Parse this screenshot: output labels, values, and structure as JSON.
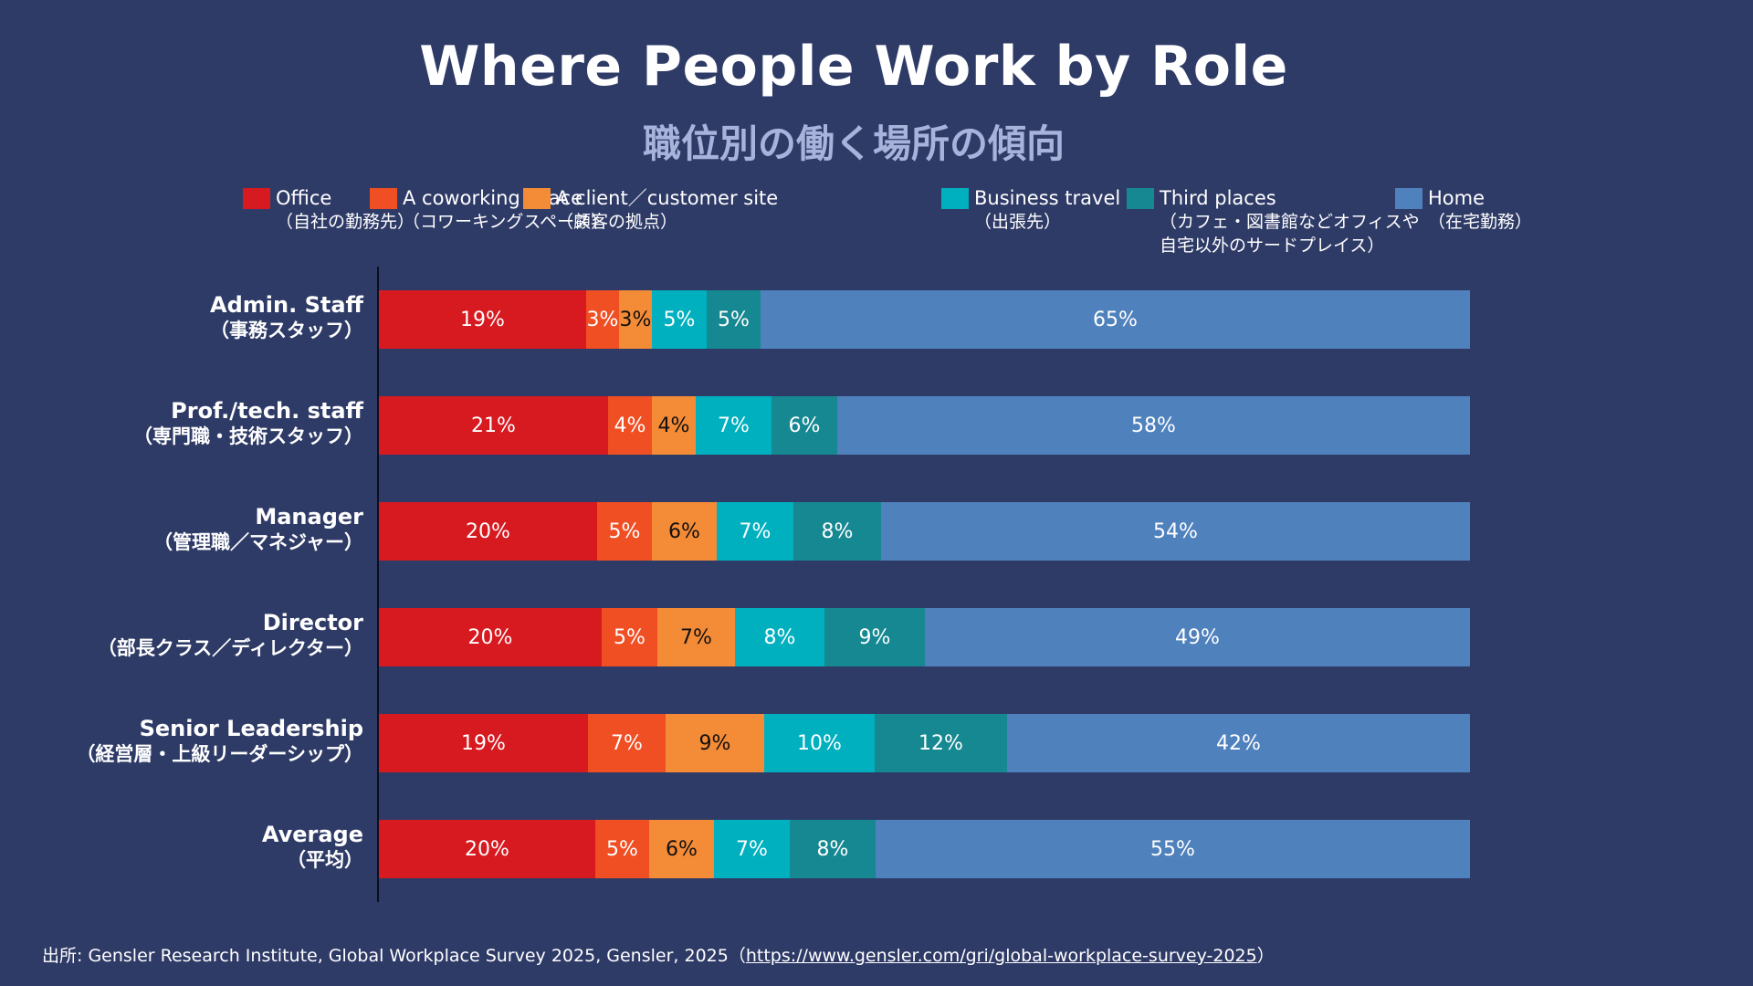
{
  "header": {
    "title": "Where People Work by Role",
    "subtitle": "職位別の働く場所の傾向"
  },
  "chart_data": {
    "type": "bar",
    "orientation": "horizontal",
    "stacked": true,
    "percent_stacked": true,
    "title": "Where People Work by Role",
    "subtitle": "職位別の働く場所の傾向",
    "xlabel": "",
    "ylabel": "",
    "xlim": [
      0,
      100
    ],
    "grid": false,
    "legend_position": "top",
    "categories": [
      {
        "en": "Admin. Staff",
        "ja": "（事務スタッフ）"
      },
      {
        "en": "Prof./tech. staff",
        "ja": "（専門職・技術スタッフ）"
      },
      {
        "en": "Manager",
        "ja": "（管理職／マネジャー）"
      },
      {
        "en": "Director",
        "ja": "（部長クラス／ディレクター）"
      },
      {
        "en": "Senior Leadership",
        "ja": "（経営層・上級リーダーシップ）"
      },
      {
        "en": "Average",
        "ja": "（平均）"
      }
    ],
    "series": [
      {
        "name": "Office",
        "name_ja": "（自社の勤務先）",
        "color": "#d71920",
        "label_color": "#ffffff",
        "values": [
          19,
          21,
          20,
          20,
          19,
          20
        ]
      },
      {
        "name": "A coworking space",
        "name_ja": "（コワーキングスペース）",
        "color": "#f04e23",
        "label_color": "#ffffff",
        "values": [
          3,
          4,
          5,
          5,
          7,
          5
        ]
      },
      {
        "name": "A client／customer site",
        "name_ja": "（顧客の拠点）",
        "color": "#f48b36",
        "label_color": "#111111",
        "values": [
          3,
          4,
          6,
          7,
          9,
          6
        ]
      },
      {
        "name": "Business travel",
        "name_ja": "（出張先）",
        "color": "#00b0bf",
        "label_color": "#ffffff",
        "values": [
          5,
          7,
          7,
          8,
          10,
          7
        ]
      },
      {
        "name": "Third places",
        "name_ja": "（カフェ・図書館などオフィスや",
        "name_ja2": "自宅以外のサードプレイス）",
        "color": "#168892",
        "label_color": "#ffffff",
        "values": [
          5,
          6,
          8,
          9,
          12,
          8
        ]
      },
      {
        "name": "Home",
        "name_ja": "（在宅勤務）",
        "color": "#4f81bd",
        "label_color": "#ffffff",
        "values": [
          65,
          58,
          54,
          49,
          42,
          55
        ]
      }
    ],
    "value_suffix": "%"
  },
  "footer": {
    "source_prefix": "出所: Gensler Research Institute, Global Workplace Survey 2025, Gensler, 2025（",
    "source_link": "https://www.gensler.com/gri/global-workplace-survey-2025",
    "source_suffix": "）"
  }
}
